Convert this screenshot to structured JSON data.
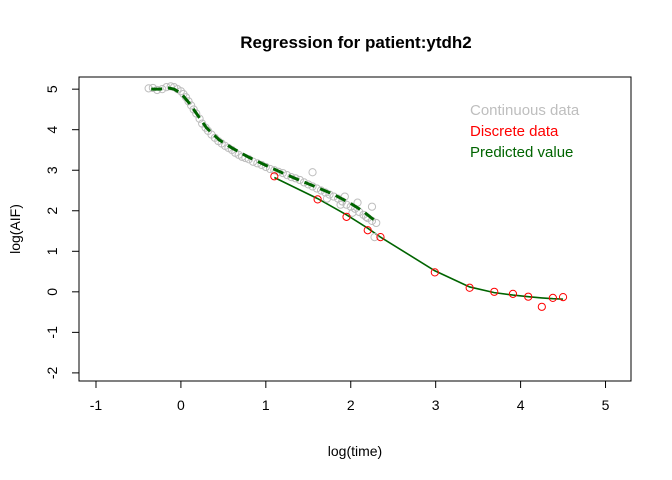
{
  "chart_data": {
    "type": "scatter",
    "title": "Regression for patient:ytdh2",
    "xlabel": "log(time)",
    "ylabel": "log(AIF)",
    "xlim": [
      -1.2,
      5.3
    ],
    "ylim": [
      -2.2,
      5.3
    ],
    "x_ticks": [
      -1,
      0,
      1,
      2,
      3,
      4,
      5
    ],
    "y_ticks": [
      -2,
      -1,
      0,
      1,
      2,
      3,
      4,
      5
    ],
    "grid": false,
    "legend_position": "top-right",
    "legend": [
      {
        "label": "Continuous data",
        "color": "#bebebe"
      },
      {
        "label": "Discrete data",
        "color": "#ff0000"
      },
      {
        "label": "Predicted value",
        "color": "#006400"
      }
    ],
    "series": [
      {
        "name": "Continuous data",
        "style": "points",
        "color": "#bebebe",
        "x": [
          -0.38,
          -0.33,
          -0.28,
          -0.22,
          -0.17,
          -0.12,
          -0.08,
          -0.04,
          0.0,
          0.03,
          0.06,
          0.09,
          0.12,
          0.15,
          0.18,
          0.22,
          0.25,
          0.29,
          0.32,
          0.36,
          0.4,
          0.44,
          0.48,
          0.52,
          0.56,
          0.6,
          0.64,
          0.68,
          0.72,
          0.76,
          0.8,
          0.85,
          0.9,
          0.95,
          1.0,
          1.05,
          1.1,
          1.15,
          1.2,
          1.25,
          1.3,
          1.35,
          1.4,
          1.45,
          1.5,
          1.55,
          1.6,
          1.65,
          1.7,
          1.75,
          1.8,
          1.85,
          1.9,
          1.95,
          2.0,
          2.05,
          2.1,
          2.15,
          2.2,
          2.25,
          2.3,
          1.55,
          1.72,
          1.88,
          2.02,
          2.18,
          2.28,
          1.93,
          2.08,
          2.25
        ],
        "y": [
          5.02,
          5.03,
          4.98,
          5.0,
          5.05,
          5.07,
          5.05,
          5.0,
          4.95,
          4.88,
          4.8,
          4.7,
          4.6,
          4.5,
          4.4,
          4.27,
          4.15,
          4.05,
          3.97,
          3.88,
          3.8,
          3.72,
          3.66,
          3.6,
          3.55,
          3.5,
          3.43,
          3.38,
          3.33,
          3.3,
          3.27,
          3.21,
          3.17,
          3.13,
          3.08,
          3.03,
          3.0,
          2.96,
          2.93,
          2.88,
          2.83,
          2.8,
          2.76,
          2.7,
          2.65,
          2.6,
          2.55,
          2.5,
          2.45,
          2.4,
          2.35,
          2.3,
          2.23,
          2.15,
          2.1,
          2.05,
          1.97,
          1.9,
          1.82,
          1.75,
          1.7,
          2.95,
          2.3,
          2.15,
          1.95,
          1.85,
          1.35,
          2.35,
          2.2,
          2.1
        ]
      },
      {
        "name": "Discrete data",
        "style": "points",
        "color": "#ff0000",
        "x": [
          1.1,
          1.61,
          1.95,
          2.2,
          2.35,
          2.99,
          3.4,
          3.69,
          3.91,
          4.09,
          4.25,
          4.38,
          4.5
        ],
        "y": [
          2.85,
          2.28,
          1.85,
          1.52,
          1.35,
          0.48,
          0.1,
          0.0,
          -0.05,
          -0.12,
          -0.37,
          -0.15,
          -0.13
        ]
      },
      {
        "name": "Predicted value",
        "style": "line",
        "color": "#006400",
        "x": [
          1.1,
          1.61,
          1.95,
          2.2,
          2.35,
          2.99,
          3.4,
          3.69,
          3.91,
          4.09,
          4.25,
          4.38,
          4.5
        ],
        "y": [
          2.82,
          2.3,
          1.9,
          1.57,
          1.35,
          0.52,
          0.12,
          -0.02,
          -0.08,
          -0.12,
          -0.15,
          -0.17,
          -0.18
        ]
      },
      {
        "name": "Predicted value",
        "style": "dashed-line",
        "color": "#006400",
        "x": [
          -0.35,
          -0.25,
          -0.15,
          -0.08,
          0.0,
          0.1,
          0.2,
          0.3,
          0.45,
          0.6,
          0.8,
          1.0,
          1.2,
          1.4,
          1.6,
          1.8,
          2.0,
          2.15,
          2.3
        ],
        "y": [
          5.0,
          5.0,
          5.03,
          5.0,
          4.9,
          4.65,
          4.35,
          4.05,
          3.75,
          3.55,
          3.32,
          3.12,
          2.93,
          2.75,
          2.58,
          2.4,
          2.18,
          1.98,
          1.73
        ]
      }
    ]
  }
}
